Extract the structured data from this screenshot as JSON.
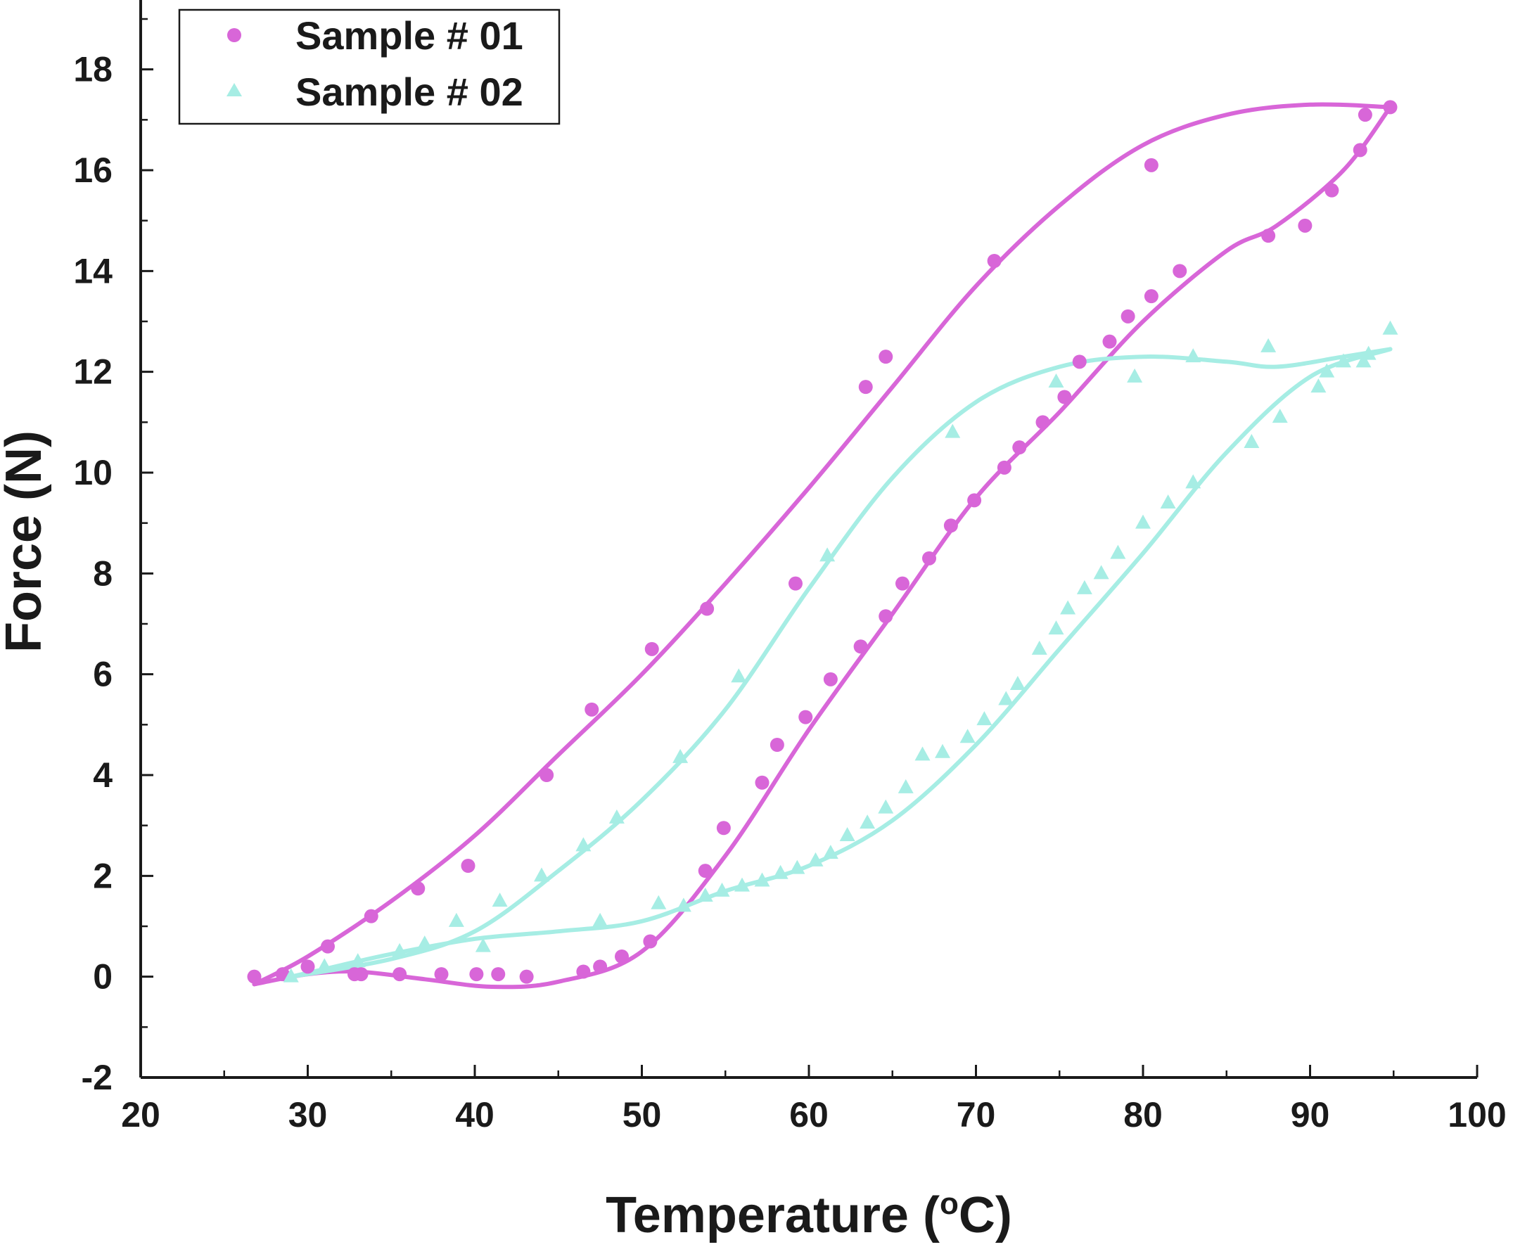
{
  "chart_data": {
    "type": "scatter",
    "xlabel": "Temperature (",
    "xlabel_sup": "o",
    "xlabel_tail": "C)",
    "ylabel": "Force (N)",
    "xlim": [
      20,
      100
    ],
    "ylim": [
      -2,
      19
    ],
    "x_ticks": [
      "20",
      "30",
      "40",
      "50",
      "60",
      "70",
      "80",
      "90",
      "100"
    ],
    "y_ticks": [
      "-2",
      "0",
      "2",
      "4",
      "6",
      "8",
      "10",
      "12",
      "14",
      "16",
      "18"
    ],
    "grid": false,
    "legend_position": "top-left",
    "series": [
      {
        "name": "Sample # 01",
        "marker": "circle",
        "color": "#d866d8",
        "points": [
          [
            26.8,
            0.0
          ],
          [
            28.5,
            0.05
          ],
          [
            30.0,
            0.2
          ],
          [
            31.2,
            0.6
          ],
          [
            33.8,
            1.2
          ],
          [
            36.6,
            1.75
          ],
          [
            39.6,
            2.2
          ],
          [
            44.3,
            4.0
          ],
          [
            47.0,
            5.3
          ],
          [
            50.6,
            6.5
          ],
          [
            53.9,
            7.3
          ],
          [
            59.2,
            7.8
          ],
          [
            63.4,
            11.7
          ],
          [
            64.6,
            12.3
          ],
          [
            71.1,
            14.2
          ],
          [
            80.5,
            16.1
          ],
          [
            93.3,
            17.1
          ],
          [
            94.8,
            17.25
          ],
          [
            93.0,
            16.4
          ],
          [
            91.3,
            15.6
          ],
          [
            89.7,
            14.9
          ],
          [
            87.5,
            14.7
          ],
          [
            82.2,
            14.0
          ],
          [
            80.5,
            13.5
          ],
          [
            79.1,
            13.1
          ],
          [
            78.0,
            12.6
          ],
          [
            76.2,
            12.2
          ],
          [
            75.3,
            11.5
          ],
          [
            74.0,
            11.0
          ],
          [
            72.6,
            10.5
          ],
          [
            71.7,
            10.1
          ],
          [
            69.9,
            9.45
          ],
          [
            68.5,
            8.95
          ],
          [
            67.2,
            8.3
          ],
          [
            65.6,
            7.8
          ],
          [
            64.6,
            7.15
          ],
          [
            63.1,
            6.55
          ],
          [
            61.3,
            5.9
          ],
          [
            59.8,
            5.15
          ],
          [
            58.1,
            4.6
          ],
          [
            57.2,
            3.85
          ],
          [
            54.9,
            2.95
          ],
          [
            53.8,
            2.1
          ],
          [
            50.5,
            0.7
          ],
          [
            48.8,
            0.4
          ],
          [
            47.5,
            0.2
          ],
          [
            46.5,
            0.1
          ],
          [
            43.1,
            0.0
          ],
          [
            41.4,
            0.05
          ],
          [
            40.1,
            0.05
          ],
          [
            38.0,
            0.05
          ],
          [
            35.5,
            0.05
          ],
          [
            33.2,
            0.05
          ],
          [
            32.8,
            0.05
          ]
        ],
        "curve_up": [
          [
            26.8,
            -0.15
          ],
          [
            30,
            0.4
          ],
          [
            35,
            1.5
          ],
          [
            40,
            2.8
          ],
          [
            45,
            4.4
          ],
          [
            50,
            6.0
          ],
          [
            55,
            7.8
          ],
          [
            60,
            9.7
          ],
          [
            65,
            11.7
          ],
          [
            70,
            13.7
          ],
          [
            75,
            15.3
          ],
          [
            80,
            16.5
          ],
          [
            85,
            17.1
          ],
          [
            90,
            17.3
          ],
          [
            94.8,
            17.25
          ]
        ],
        "curve_down": [
          [
            94.8,
            17.25
          ],
          [
            92,
            16.0
          ],
          [
            88,
            14.9
          ],
          [
            85,
            14.4
          ],
          [
            80,
            13.0
          ],
          [
            75,
            11.2
          ],
          [
            70,
            9.5
          ],
          [
            65,
            7.2
          ],
          [
            60,
            4.9
          ],
          [
            55,
            2.4
          ],
          [
            50,
            0.5
          ],
          [
            45,
            -0.1
          ],
          [
            41,
            -0.2
          ],
          [
            37,
            -0.05
          ],
          [
            33,
            0.1
          ],
          [
            30,
            0.05
          ],
          [
            26.8,
            -0.15
          ]
        ]
      },
      {
        "name": "Sample # 02",
        "marker": "triangle",
        "color": "#a6ede4",
        "points": [
          [
            29.0,
            0.0
          ],
          [
            31.0,
            0.2
          ],
          [
            33.0,
            0.3
          ],
          [
            35.5,
            0.5
          ],
          [
            37.0,
            0.65
          ],
          [
            38.9,
            1.1
          ],
          [
            40.5,
            0.6
          ],
          [
            41.5,
            1.5
          ],
          [
            44.0,
            2.0
          ],
          [
            46.5,
            2.6
          ],
          [
            48.5,
            3.15
          ],
          [
            52.3,
            4.35
          ],
          [
            55.8,
            5.95
          ],
          [
            61.1,
            8.35
          ],
          [
            68.6,
            10.8
          ],
          [
            74.8,
            11.8
          ],
          [
            79.5,
            11.9
          ],
          [
            83.0,
            12.3
          ],
          [
            87.5,
            12.5
          ],
          [
            90.5,
            11.7
          ],
          [
            92.0,
            12.2
          ],
          [
            93.5,
            12.35
          ],
          [
            94.8,
            12.85
          ],
          [
            93.2,
            12.2
          ],
          [
            91.0,
            12.0
          ],
          [
            88.2,
            11.1
          ],
          [
            86.5,
            10.6
          ],
          [
            83.0,
            9.8
          ],
          [
            81.5,
            9.4
          ],
          [
            80.0,
            9.0
          ],
          [
            78.5,
            8.4
          ],
          [
            77.5,
            8.0
          ],
          [
            76.5,
            7.7
          ],
          [
            75.5,
            7.3
          ],
          [
            74.8,
            6.9
          ],
          [
            73.8,
            6.5
          ],
          [
            72.5,
            5.8
          ],
          [
            71.8,
            5.5
          ],
          [
            70.5,
            5.1
          ],
          [
            69.5,
            4.75
          ],
          [
            68.0,
            4.45
          ],
          [
            66.8,
            4.4
          ],
          [
            65.8,
            3.75
          ],
          [
            64.6,
            3.35
          ],
          [
            63.5,
            3.05
          ],
          [
            62.3,
            2.8
          ],
          [
            61.3,
            2.45
          ],
          [
            60.4,
            2.3
          ],
          [
            59.3,
            2.15
          ],
          [
            58.3,
            2.05
          ],
          [
            57.2,
            1.9
          ],
          [
            56.0,
            1.8
          ],
          [
            54.8,
            1.7
          ],
          [
            53.8,
            1.6
          ],
          [
            52.5,
            1.4
          ],
          [
            51.0,
            1.45
          ],
          [
            47.5,
            1.1
          ]
        ],
        "curve_up": [
          [
            29.0,
            0.0
          ],
          [
            35,
            0.35
          ],
          [
            40,
            0.9
          ],
          [
            45,
            2.1
          ],
          [
            50,
            3.5
          ],
          [
            55,
            5.3
          ],
          [
            60,
            7.7
          ],
          [
            65,
            9.9
          ],
          [
            70,
            11.4
          ],
          [
            75,
            12.1
          ],
          [
            80,
            12.3
          ],
          [
            85,
            12.2
          ],
          [
            88,
            12.1
          ],
          [
            92,
            12.3
          ],
          [
            94.8,
            12.45
          ]
        ],
        "curve_down": [
          [
            94.8,
            12.45
          ],
          [
            90,
            11.9
          ],
          [
            85,
            10.4
          ],
          [
            80,
            8.4
          ],
          [
            75,
            6.5
          ],
          [
            70,
            4.6
          ],
          [
            65,
            3.1
          ],
          [
            60,
            2.2
          ],
          [
            55,
            1.7
          ],
          [
            50,
            1.1
          ],
          [
            45,
            0.9
          ],
          [
            40,
            0.75
          ],
          [
            35,
            0.45
          ],
          [
            31,
            0.15
          ],
          [
            29.0,
            0.0
          ]
        ]
      }
    ]
  }
}
